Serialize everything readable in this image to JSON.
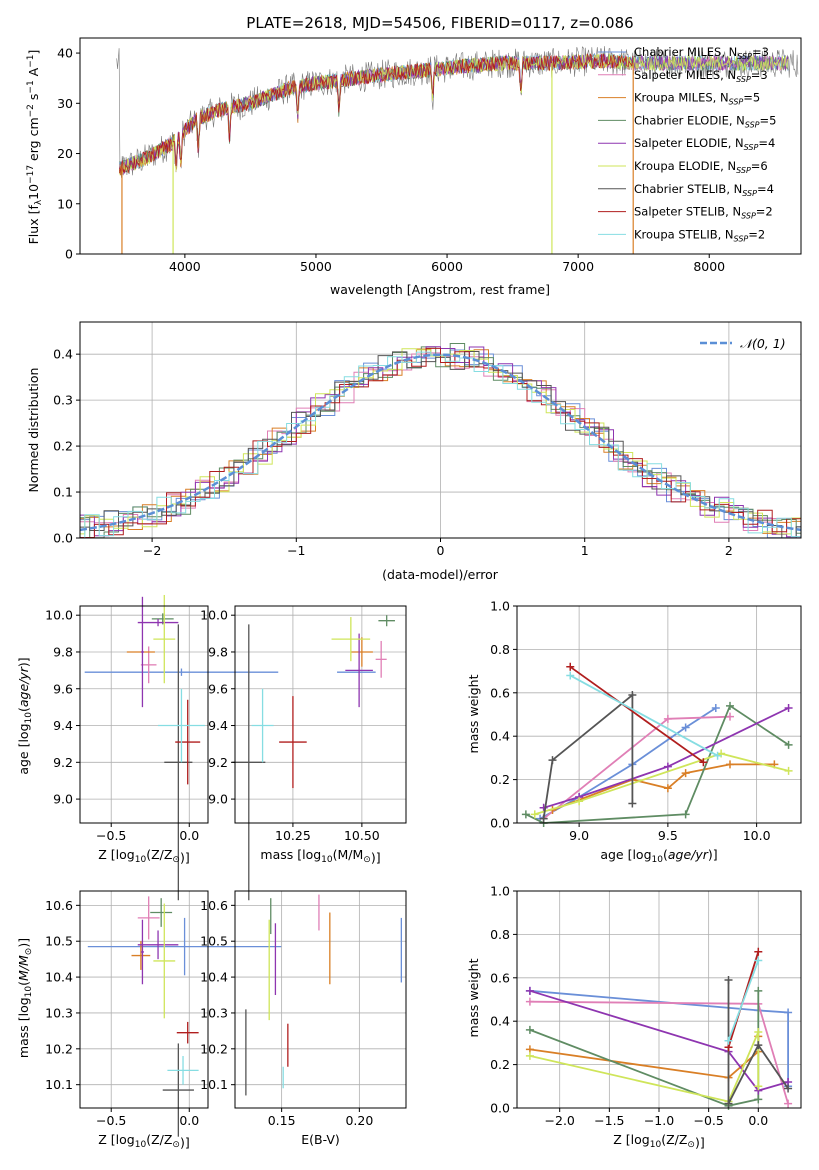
{
  "figure_title": "PLATE=2618, MJD=54506, FIBERID=0117, z=0.086",
  "palette": [
    "#6a8fd8",
    "#e07fb6",
    "#d97f26",
    "#5f8c63",
    "#8e35b0",
    "#cfe55a",
    "#555555",
    "#b01e1e",
    "#86dde2"
  ],
  "chart_data": [
    {
      "id": "spectrum",
      "type": "line",
      "xlabel": "wavelength [Angstrom, rest frame]",
      "ylabel": "Flux [f_λ10^-17 erg cm^-2 s^-1 A^-1]",
      "xlim": [
        3200,
        8700
      ],
      "ylim": [
        0,
        43
      ],
      "xticks": [
        4000,
        5000,
        6000,
        7000,
        8000
      ],
      "yticks": [
        0,
        10,
        20,
        30,
        40
      ],
      "grid": false,
      "legend_position": "top-right",
      "continuum": {
        "x": [
          3500,
          3700,
          3900,
          4100,
          4300,
          4500,
          4800,
          5000,
          5300,
          5600,
          6000,
          6400,
          6800,
          7200,
          7420
        ],
        "y": [
          17,
          19,
          22,
          27,
          29,
          30,
          33,
          34,
          35,
          36,
          37,
          38,
          38,
          38.5,
          38
        ]
      },
      "series": [
        {
          "name": "Chabrier MILES, N_SSP=3",
          "label_main": "Chabrier MILES, N",
          "label_sub": "SSP",
          "label_tail": "=3",
          "color": "#6a8fd8"
        },
        {
          "name": "Salpeter MILES, N_SSP=3",
          "label_main": "Salpeter MILES, N",
          "label_sub": "SSP",
          "label_tail": "=3",
          "color": "#e07fb6"
        },
        {
          "name": "Kroupa MILES, N_SSP=5",
          "label_main": "Kroupa MILES, N",
          "label_sub": "SSP",
          "label_tail": "=5",
          "color": "#d97f26"
        },
        {
          "name": "Chabrier ELODIE, N_SSP=5",
          "label_main": "Chabrier ELODIE, N",
          "label_sub": "SSP",
          "label_tail": "=5",
          "color": "#5f8c63"
        },
        {
          "name": "Salpeter ELODIE, N_SSP=4",
          "label_main": "Salpeter ELODIE, N",
          "label_sub": "SSP",
          "label_tail": "=4",
          "color": "#8e35b0"
        },
        {
          "name": "Kroupa ELODIE, N_SSP=6",
          "label_main": "Kroupa ELODIE, N",
          "label_sub": "SSP",
          "label_tail": "=6",
          "color": "#cfe55a"
        },
        {
          "name": "Chabrier STELIB, N_SSP=4",
          "label_main": "Chabrier STELIB, N",
          "label_sub": "SSP",
          "label_tail": "=4",
          "color": "#555555"
        },
        {
          "name": "Salpeter STELIB, N_SSP=2",
          "label_main": "Salpeter STELIB, N",
          "label_sub": "SSP",
          "label_tail": "=2",
          "color": "#b01e1e"
        },
        {
          "name": "Kroupa STELIB, N_SSP=2",
          "label_main": "Kroupa STELIB, N",
          "label_sub": "SSP",
          "label_tail": "=2",
          "color": "#86dde2"
        }
      ]
    },
    {
      "id": "residuals",
      "type": "histogram",
      "xlabel": "(data-model)/error",
      "ylabel": "Normed distribution",
      "xlim": [
        -2.5,
        2.5
      ],
      "ylim": [
        0,
        0.47
      ],
      "xticks": [
        -2,
        -1,
        0,
        1,
        2
      ],
      "yticks": [
        0.0,
        0.1,
        0.2,
        0.3,
        0.4
      ],
      "grid": true,
      "legend_position": "top-right",
      "reference_curve": {
        "name": "N(0,1)",
        "label": "𝒩(0, 1)",
        "color": "#5b8fd6"
      }
    },
    {
      "id": "age_vs_Z",
      "type": "errorbar",
      "xlabel": "Z [log10(Z/Z⊙)]",
      "xlabel_main": "Z [log",
      "xlabel_tail": "(Z/Z",
      "xlabel_end": ")]",
      "ylabel": "age [log10(age/yr)]",
      "xlim": [
        -0.7,
        0.12
      ],
      "ylim": [
        8.87,
        10.05
      ],
      "xticks": [
        -0.5,
        0.0
      ],
      "yticks": [
        9.0,
        9.2,
        9.4,
        9.6,
        9.8,
        10.0
      ],
      "points": [
        {
          "x": -0.05,
          "y": 9.69,
          "xerr": 0.62,
          "yerr": 0.02,
          "color": "#6a8fd8"
        },
        {
          "x": -0.26,
          "y": 9.73,
          "xerr": 0.05,
          "yerr": 0.1,
          "color": "#e07fb6"
        },
        {
          "x": -0.31,
          "y": 9.8,
          "xerr": 0.09,
          "yerr": 0.0,
          "color": "#d97f26"
        },
        {
          "x": -0.17,
          "y": 9.98,
          "xerr": 0.07,
          "yerr": 0.03,
          "color": "#5f8c63"
        },
        {
          "x": -0.2,
          "y": 9.96,
          "xerr": 0.13,
          "yerr": 0.02,
          "color": "#8e35b0"
        },
        {
          "x": -0.16,
          "y": 9.87,
          "xerr": 0.07,
          "yerr": 0.24,
          "color": "#cfe55a"
        },
        {
          "x": -0.07,
          "y": 9.2,
          "xerr": 0.09,
          "yerr": 0.75,
          "color": "#555555"
        },
        {
          "x": -0.3,
          "y": 9.8,
          "xerr": 0.01,
          "yerr": 0.3,
          "color": "#8e35b0"
        },
        {
          "x": -0.01,
          "y": 9.31,
          "xerr": 0.08,
          "yerr": 0.23,
          "color": "#b01e1e"
        },
        {
          "x": -0.05,
          "y": 9.4,
          "xerr": 0.15,
          "yerr": 0.2,
          "color": "#86dde2"
        }
      ]
    },
    {
      "id": "age_vs_mass",
      "type": "errorbar",
      "xlabel": "mass [log10(M/M⊙)]",
      "xlabel_main": "mass [log",
      "xlabel_tail": "(M/M",
      "xlabel_end": ")]",
      "ylabel": "",
      "xlim": [
        10.04,
        10.66
      ],
      "ylim": [
        8.87,
        10.05
      ],
      "xticks": [
        10.25,
        10.5
      ],
      "yticks": [
        9.0,
        9.2,
        9.4,
        9.6,
        9.8,
        10.0
      ],
      "points": [
        {
          "x": 10.48,
          "y": 9.69,
          "xerr": 0.07,
          "yerr": 0.0,
          "color": "#6a8fd8"
        },
        {
          "x": 10.57,
          "y": 9.76,
          "xerr": 0.02,
          "yerr": 0.1,
          "color": "#e07fb6"
        },
        {
          "x": 10.5,
          "y": 9.8,
          "xerr": 0.04,
          "yerr": 0.08,
          "color": "#d97f26"
        },
        {
          "x": 10.59,
          "y": 9.97,
          "xerr": 0.03,
          "yerr": 0.03,
          "color": "#5f8c63"
        },
        {
          "x": 10.49,
          "y": 9.7,
          "xerr": 0.05,
          "yerr": 0.2,
          "color": "#8e35b0"
        },
        {
          "x": 10.46,
          "y": 9.87,
          "xerr": 0.07,
          "yerr": 0.12,
          "color": "#cfe55a"
        },
        {
          "x": 10.09,
          "y": 9.2,
          "xerr": 0.06,
          "yerr": 0.75,
          "color": "#555555"
        },
        {
          "x": 10.25,
          "y": 9.31,
          "xerr": 0.05,
          "yerr": 0.25,
          "color": "#b01e1e"
        },
        {
          "x": 10.14,
          "y": 9.4,
          "xerr": 0.04,
          "yerr": 0.2,
          "color": "#86dde2"
        }
      ]
    },
    {
      "id": "massweight_vs_age",
      "type": "line",
      "xlabel": "age [log10(age/yr)]",
      "xlabel_main": "age  [log",
      "xlabel_tail": "(",
      "xlabel_italic": "age/yr",
      "xlabel_end": ")]",
      "ylabel": "mass weight",
      "xlim": [
        8.65,
        10.25
      ],
      "ylim": [
        0,
        1
      ],
      "xticks": [
        9.0,
        9.5,
        10.0
      ],
      "yticks": [
        0.0,
        0.2,
        0.4,
        0.6,
        0.8,
        1.0
      ],
      "grid": true,
      "series": [
        {
          "color": "#6a8fd8",
          "x": [
            8.78,
            9.0,
            9.3,
            9.6,
            9.77
          ],
          "y": [
            0.02,
            0.12,
            0.27,
            0.44,
            0.53
          ]
        },
        {
          "color": "#e07fb6",
          "x": [
            8.8,
            9.5,
            9.85
          ],
          "y": [
            0.02,
            0.48,
            0.49
          ]
        },
        {
          "color": "#d97f26",
          "x": [
            8.85,
            9.3,
            9.5,
            9.6,
            9.85,
            10.1
          ],
          "y": [
            0.06,
            0.2,
            0.16,
            0.23,
            0.27,
            0.27
          ]
        },
        {
          "color": "#5f8c63",
          "x": [
            8.7,
            8.8,
            9.6,
            9.85,
            10.18
          ],
          "y": [
            0.04,
            0.0,
            0.04,
            0.54,
            0.36
          ]
        },
        {
          "color": "#8e35b0",
          "x": [
            8.8,
            9.0,
            9.5,
            10.18
          ],
          "y": [
            0.07,
            0.12,
            0.26,
            0.53
          ]
        },
        {
          "color": "#cfe55a",
          "x": [
            8.75,
            9.0,
            9.8,
            10.18
          ],
          "y": [
            0.04,
            0.1,
            0.32,
            0.24
          ]
        },
        {
          "color": "#555555",
          "x": [
            8.8,
            8.85,
            9.3,
            9.3
          ],
          "y": [
            0.02,
            0.29,
            0.59,
            0.09
          ]
        },
        {
          "color": "#b01e1e",
          "x": [
            8.95,
            9.7
          ],
          "y": [
            0.72,
            0.28
          ]
        },
        {
          "color": "#86dde2",
          "x": [
            8.95,
            9.78
          ],
          "y": [
            0.68,
            0.31
          ]
        }
      ]
    },
    {
      "id": "mass_vs_Z",
      "type": "errorbar",
      "xlabel": "Z [log10(Z/Z⊙)]",
      "xlabel_main": "Z [log",
      "xlabel_tail": "(Z/Z",
      "xlabel_end": ")]",
      "ylabel": "mass [log10(M/M⊙)]",
      "xlim": [
        -0.7,
        0.12
      ],
      "ylim": [
        10.035,
        10.64
      ],
      "xticks": [
        -0.5,
        0.0
      ],
      "yticks": [
        10.1,
        10.2,
        10.3,
        10.4,
        10.5,
        10.6
      ],
      "points": [
        {
          "x": -0.03,
          "y": 10.485,
          "xerr": 0.62,
          "yerr": 0.08,
          "color": "#6a8fd8"
        },
        {
          "x": -0.26,
          "y": 10.565,
          "xerr": 0.07,
          "yerr": 0.06,
          "color": "#e07fb6"
        },
        {
          "x": -0.31,
          "y": 10.46,
          "xerr": 0.06,
          "yerr": 0.04,
          "color": "#d97f26"
        },
        {
          "x": -0.18,
          "y": 10.58,
          "xerr": 0.07,
          "yerr": 0.04,
          "color": "#5f8c63"
        },
        {
          "x": -0.2,
          "y": 10.49,
          "xerr": 0.13,
          "yerr": 0.04,
          "color": "#8e35b0"
        },
        {
          "x": -0.16,
          "y": 10.445,
          "xerr": 0.07,
          "yerr": 0.16,
          "color": "#cfe55a"
        },
        {
          "x": -0.07,
          "y": 10.085,
          "xerr": 0.1,
          "yerr": 0.13,
          "color": "#555555"
        },
        {
          "x": -0.3,
          "y": 10.47,
          "xerr": 0.01,
          "yerr": 0.09,
          "color": "#8e35b0"
        },
        {
          "x": -0.01,
          "y": 10.245,
          "xerr": 0.07,
          "yerr": 0.03,
          "color": "#b01e1e"
        },
        {
          "x": -0.04,
          "y": 10.14,
          "xerr": 0.1,
          "yerr": 0.04,
          "color": "#86dde2"
        }
      ]
    },
    {
      "id": "mass_vs_ebv",
      "type": "errorbar",
      "xlabel": "E(B-V)",
      "ylabel": "",
      "xlim": [
        0.12,
        0.23
      ],
      "ylim": [
        10.035,
        10.64
      ],
      "xticks": [
        0.15,
        0.2
      ],
      "yticks": [
        10.1,
        10.2,
        10.3,
        10.4,
        10.5,
        10.6
      ],
      "points": [
        {
          "x": 0.227,
          "y": 10.475,
          "xerr": 0,
          "yerr": 0.09,
          "color": "#6a8fd8"
        },
        {
          "x": 0.174,
          "y": 10.58,
          "xerr": 0,
          "yerr": 0.05,
          "color": "#e07fb6"
        },
        {
          "x": 0.181,
          "y": 10.48,
          "xerr": 0,
          "yerr": 0.1,
          "color": "#d97f26"
        },
        {
          "x": 0.143,
          "y": 10.57,
          "xerr": 0,
          "yerr": 0.05,
          "color": "#5f8c63"
        },
        {
          "x": 0.146,
          "y": 10.45,
          "xerr": 0,
          "yerr": 0.1,
          "color": "#8e35b0"
        },
        {
          "x": 0.142,
          "y": 10.42,
          "xerr": 0,
          "yerr": 0.14,
          "color": "#cfe55a"
        },
        {
          "x": 0.127,
          "y": 10.19,
          "xerr": 0,
          "yerr": 0.12,
          "color": "#555555"
        },
        {
          "x": 0.154,
          "y": 10.21,
          "xerr": 0,
          "yerr": 0.06,
          "color": "#b01e1e"
        },
        {
          "x": 0.151,
          "y": 10.12,
          "xerr": 0,
          "yerr": 0.03,
          "color": "#86dde2"
        }
      ]
    },
    {
      "id": "massweight_vs_Z",
      "type": "line",
      "xlabel": "Z [log10(Z/Z⊙)]",
      "xlabel_main": "Z [log",
      "xlabel_tail": "(Z/Z",
      "xlabel_end": ")]",
      "ylabel": "mass weight",
      "xlim": [
        -2.43,
        0.43
      ],
      "ylim": [
        0,
        1
      ],
      "xticks": [
        -2.0,
        -1.5,
        -1.0,
        -0.5,
        0.0
      ],
      "yticks": [
        0.0,
        0.2,
        0.4,
        0.6,
        0.8,
        1.0
      ],
      "grid": true,
      "series": [
        {
          "color": "#6a8fd8",
          "x": [
            -2.3,
            0.0,
            0.3,
            0.3
          ],
          "y": [
            0.54,
            0.45,
            0.44,
            0.1
          ]
        },
        {
          "color": "#e07fb6",
          "x": [
            -2.3,
            0.0,
            0.3
          ],
          "y": [
            0.49,
            0.48,
            0.02
          ]
        },
        {
          "color": "#d97f26",
          "x": [
            -2.3,
            -0.3,
            0.0,
            0.0
          ],
          "y": [
            0.27,
            0.14,
            0.26,
            0.33
          ]
        },
        {
          "color": "#5f8c63",
          "x": [
            -2.3,
            -0.3,
            0.0,
            0.0
          ],
          "y": [
            0.36,
            0.01,
            0.04,
            0.54
          ]
        },
        {
          "color": "#8e35b0",
          "x": [
            -2.3,
            -0.3,
            0.0,
            0.3
          ],
          "y": [
            0.54,
            0.26,
            0.08,
            0.12
          ]
        },
        {
          "color": "#cfe55a",
          "x": [
            -2.3,
            -0.3,
            0.0,
            0.0
          ],
          "y": [
            0.24,
            0.03,
            0.35,
            0.1
          ]
        },
        {
          "color": "#555555",
          "x": [
            -0.3,
            -0.3,
            0.0,
            0.3
          ],
          "y": [
            0.59,
            0.02,
            0.29,
            0.09
          ]
        },
        {
          "color": "#b01e1e",
          "x": [
            -0.3,
            0.0
          ],
          "y": [
            0.28,
            0.72
          ]
        },
        {
          "color": "#86dde2",
          "x": [
            -0.3,
            0.0
          ],
          "y": [
            0.31,
            0.68
          ]
        }
      ]
    }
  ]
}
